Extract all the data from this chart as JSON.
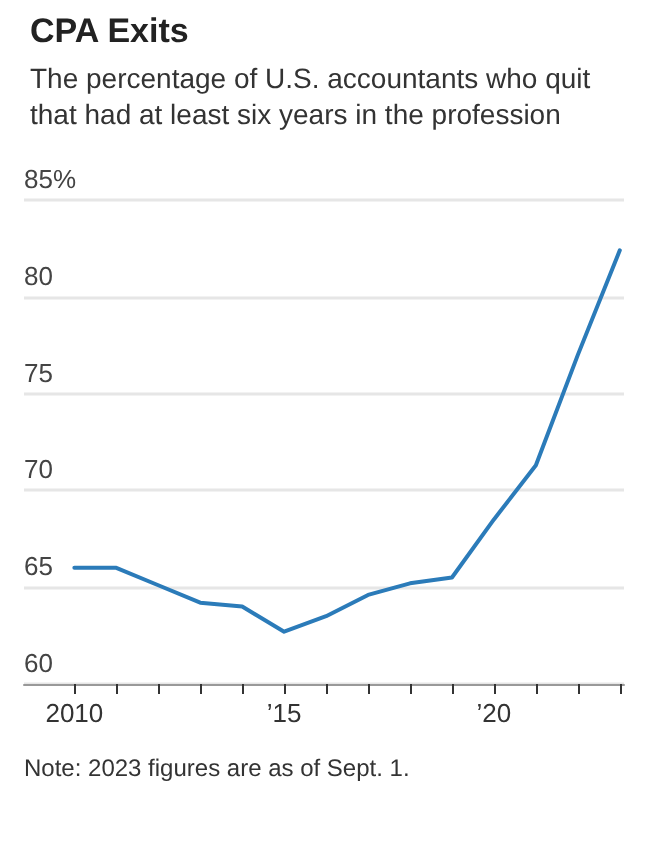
{
  "chart_data": {
    "type": "line",
    "title": "CPA Exits",
    "subtitle": "The percentage of U.S. accountants who quit that had at least six years in the profession",
    "x": [
      2010,
      2011,
      2012,
      2013,
      2014,
      2015,
      2016,
      2017,
      2018,
      2019,
      2020,
      2021,
      2022,
      2023
    ],
    "series": [
      {
        "color": "#2b7bb9",
        "values": [
          66.0,
          66.0,
          65.1,
          64.2,
          64.0,
          62.7,
          63.5,
          64.6,
          65.2,
          65.5,
          68.5,
          71.3,
          77.0,
          82.4
        ]
      }
    ],
    "xlim": [
      2008.8,
      2023.1
    ],
    "xticks": [
      {
        "value": 2010,
        "label": "2010"
      },
      {
        "value": 2011,
        "label": null
      },
      {
        "value": 2012,
        "label": null
      },
      {
        "value": 2013,
        "label": null
      },
      {
        "value": 2014,
        "label": null
      },
      {
        "value": 2015,
        "label": "’15"
      },
      {
        "value": 2016,
        "label": null
      },
      {
        "value": 2017,
        "label": null
      },
      {
        "value": 2018,
        "label": null
      },
      {
        "value": 2019,
        "label": null
      },
      {
        "value": 2020,
        "label": "’20"
      },
      {
        "value": 2021,
        "label": null
      },
      {
        "value": 2022,
        "label": null
      },
      {
        "value": 2023,
        "label": null
      }
    ],
    "ylim": [
      60,
      85
    ],
    "yticks": [
      60,
      65,
      70,
      75,
      80,
      {
        "value": 85,
        "label": "85%"
      }
    ],
    "grid": "y",
    "marker": "none",
    "line_style": "solid",
    "annotations": [
      "Note: 2023 figures are as of Sept. 1."
    ]
  }
}
